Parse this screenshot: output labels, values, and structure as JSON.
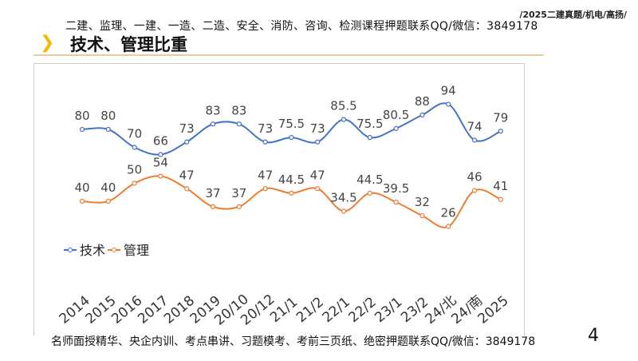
{
  "header": {
    "path_note": "/2025二建真题/机电/高扬/",
    "ad_text": "二建、监理、一建、一造、二造、安全、消防、咨询、检测课程押题联系QQ/微信：3849178",
    "title": "技术、管理比重"
  },
  "footer": {
    "ad_text": "名师面授精华、央企内训、考点串讲、习题模考、考前三页纸、绝密押题联系QQ/微信：3849178",
    "page_number": "4"
  },
  "chart_data": {
    "type": "line",
    "categories": [
      "2014",
      "2015",
      "2016",
      "2017",
      "2018",
      "2019",
      "20/10",
      "20/12",
      "21/1",
      "21/2",
      "22/1",
      "22/2",
      "23/1",
      "23/2",
      "24/北",
      "24/南",
      "2025"
    ],
    "series": [
      {
        "name": "技术",
        "color": "#4472c4",
        "values": [
          80,
          80,
          70,
          66,
          73,
          83,
          83,
          73,
          75.5,
          73,
          85.5,
          75.5,
          80.5,
          88,
          94,
          74,
          79
        ]
      },
      {
        "name": "管理",
        "color": "#ed7d31",
        "values": [
          40,
          40,
          50,
          54,
          47,
          37,
          37,
          47,
          44.5,
          47,
          34.5,
          44.5,
          39.5,
          32,
          26,
          46,
          41
        ]
      }
    ],
    "legend": "left",
    "grid": false,
    "smooth": true,
    "data_labels": true
  }
}
